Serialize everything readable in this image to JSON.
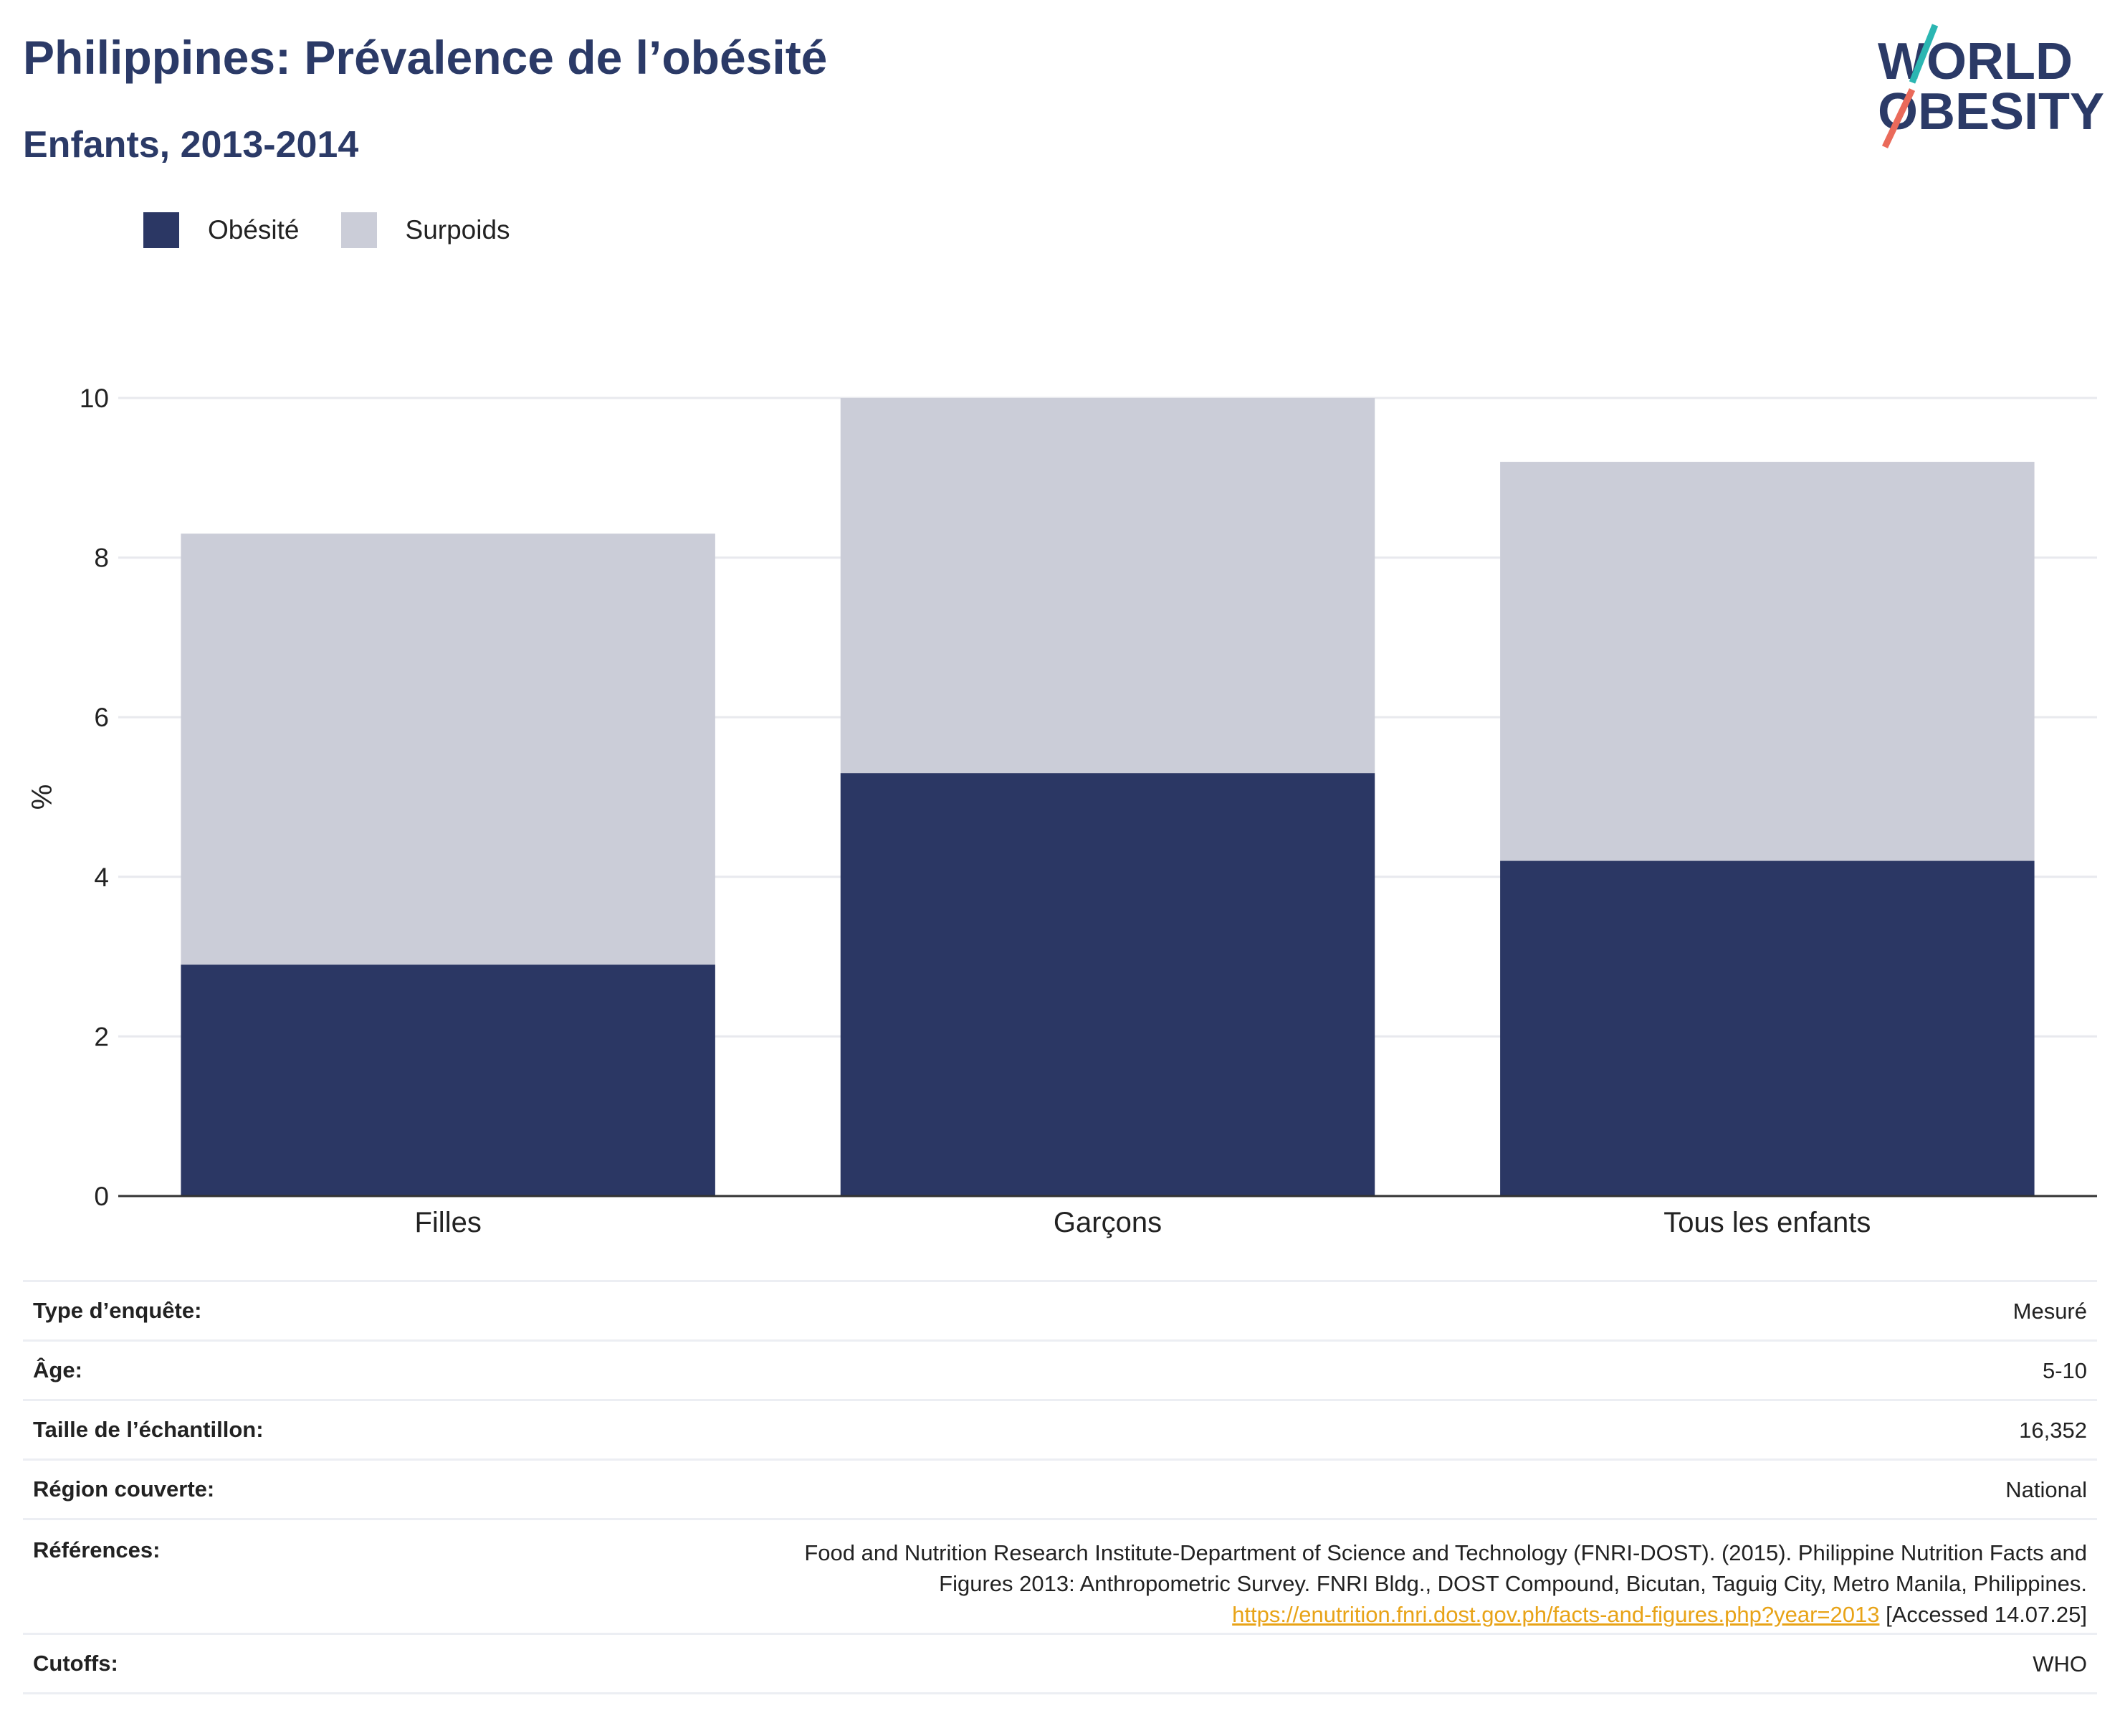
{
  "header": {
    "title": "Philippines: Prévalence de l’obésité",
    "subtitle": "Enfants, 2013-2014"
  },
  "logo": {
    "line1": "WORLD",
    "line2": "OBESITY",
    "accent_teal": "#2bb6b2",
    "accent_coral": "#ea6a5a"
  },
  "colors": {
    "obesity": "#2b3764",
    "overweight": "#cbcdd8",
    "text": "#2b3a67"
  },
  "chart_data": {
    "type": "bar",
    "stacked": true,
    "categories": [
      "Filles",
      "Garçons",
      "Tous les enfants"
    ],
    "series": [
      {
        "name": "Obésité",
        "values": [
          2.9,
          5.3,
          4.2
        ]
      },
      {
        "name": "Surpoids",
        "values": [
          5.4,
          4.7,
          5.0
        ]
      }
    ],
    "ylabel": "%",
    "ylim": [
      0,
      10
    ],
    "yticks": [
      0,
      2,
      4,
      6,
      8,
      10
    ],
    "grid": true,
    "legend_position": "top-left"
  },
  "meta": {
    "survey_type": {
      "label": "Type d’enquête:",
      "value": "Mesuré"
    },
    "age": {
      "label": "Âge:",
      "value": "5-10"
    },
    "sample_size": {
      "label": "Taille de l’échantillon:",
      "value": "16,352"
    },
    "region": {
      "label": "Région couverte:",
      "value": "National"
    },
    "references": {
      "label": "Références:",
      "line1": "Food and Nutrition Research Institute-Department of Science and Technology (FNRI-DOST). (2015). Philippine Nutrition Facts and",
      "line2": "Figures 2013: Anthropometric Survey. FNRI Bldg., DOST Compound, Bicutan, Taguig City, Metro Manila, Philippines.",
      "link": "https://enutrition.fnri.dost.gov.ph/facts-and-figures.php?year=2013",
      "accessed": " [Accessed 14.07.25]"
    },
    "cutoffs": {
      "label": "Cutoffs:",
      "value": "WHO"
    }
  }
}
